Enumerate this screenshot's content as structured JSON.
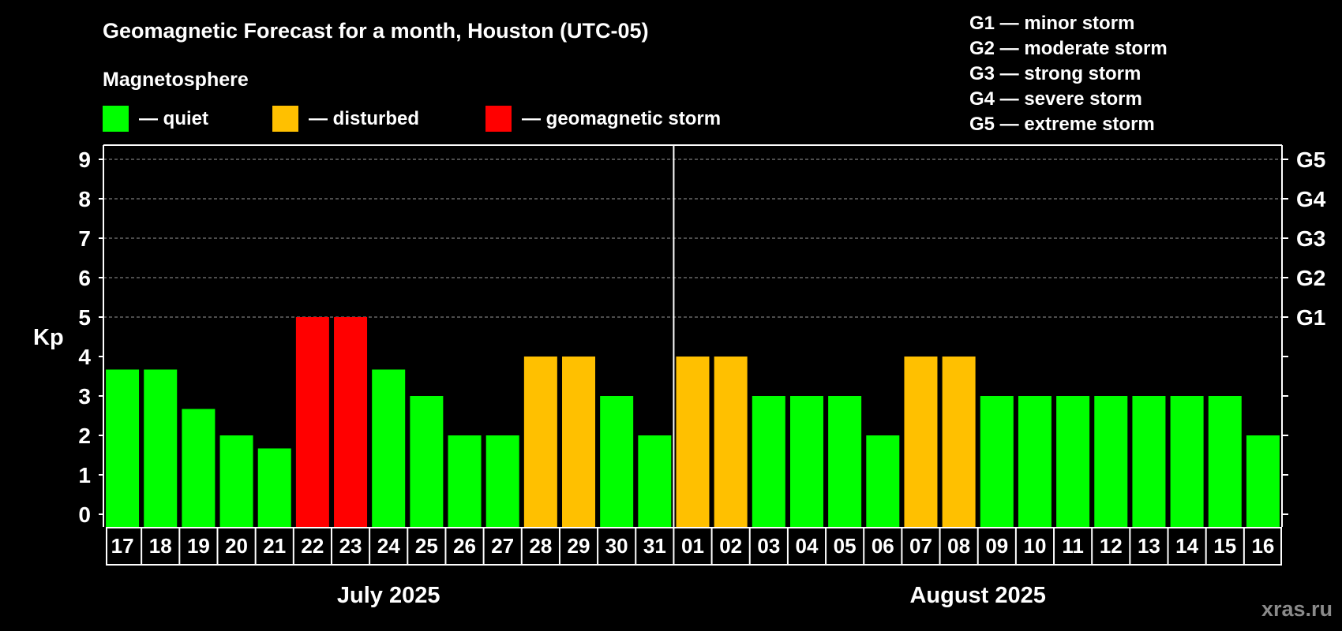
{
  "chart_data": {
    "type": "bar",
    "title": "Geomagnetic Forecast for a month, Houston (UTC-05)",
    "legend_title": "Magnetosphere",
    "legend": [
      {
        "key": "quiet",
        "label": "— quiet",
        "color": "#00ff00"
      },
      {
        "key": "disturbed",
        "label": "— disturbed",
        "color": "#ffc000"
      },
      {
        "key": "storm",
        "label": "— geomagnetic storm",
        "color": "#ff0000"
      }
    ],
    "g_scale": [
      "G1 — minor storm",
      "G2 — moderate storm",
      "G3 — strong storm",
      "G4 — severe storm",
      "G5 — extreme storm"
    ],
    "ylabel": "Kp",
    "ylim": [
      0,
      9
    ],
    "yticks": [
      "0",
      "1",
      "2",
      "3",
      "4",
      "5",
      "6",
      "7",
      "8",
      "9"
    ],
    "right_ticks": [
      {
        "kp": 5,
        "label": "G1"
      },
      {
        "kp": 6,
        "label": "G2"
      },
      {
        "kp": 7,
        "label": "G3"
      },
      {
        "kp": 8,
        "label": "G4"
      },
      {
        "kp": 9,
        "label": "G5"
      }
    ],
    "grid_kp": [
      5,
      6,
      7,
      8,
      9
    ],
    "categories": [
      "17",
      "18",
      "19",
      "20",
      "21",
      "22",
      "23",
      "24",
      "25",
      "26",
      "27",
      "28",
      "29",
      "30",
      "31",
      "01",
      "02",
      "03",
      "04",
      "05",
      "06",
      "07",
      "08",
      "09",
      "10",
      "11",
      "12",
      "13",
      "14",
      "15",
      "16"
    ],
    "values": [
      3.67,
      3.67,
      2.67,
      2,
      1.67,
      5,
      5,
      3.67,
      3,
      2,
      2,
      4,
      4,
      3,
      2,
      4,
      4,
      3,
      3,
      3,
      2,
      4,
      4,
      3,
      3,
      3,
      3,
      3,
      3,
      3,
      2
    ],
    "status": [
      "quiet",
      "quiet",
      "quiet",
      "quiet",
      "quiet",
      "storm",
      "storm",
      "quiet",
      "quiet",
      "quiet",
      "quiet",
      "disturbed",
      "disturbed",
      "quiet",
      "quiet",
      "disturbed",
      "disturbed",
      "quiet",
      "quiet",
      "quiet",
      "quiet",
      "disturbed",
      "disturbed",
      "quiet",
      "quiet",
      "quiet",
      "quiet",
      "quiet",
      "quiet",
      "quiet",
      "quiet"
    ],
    "months": [
      {
        "label": "July 2025",
        "start": 0,
        "end": 14
      },
      {
        "label": "August 2025",
        "start": 15,
        "end": 30
      }
    ],
    "watermark": "xras.ru"
  }
}
